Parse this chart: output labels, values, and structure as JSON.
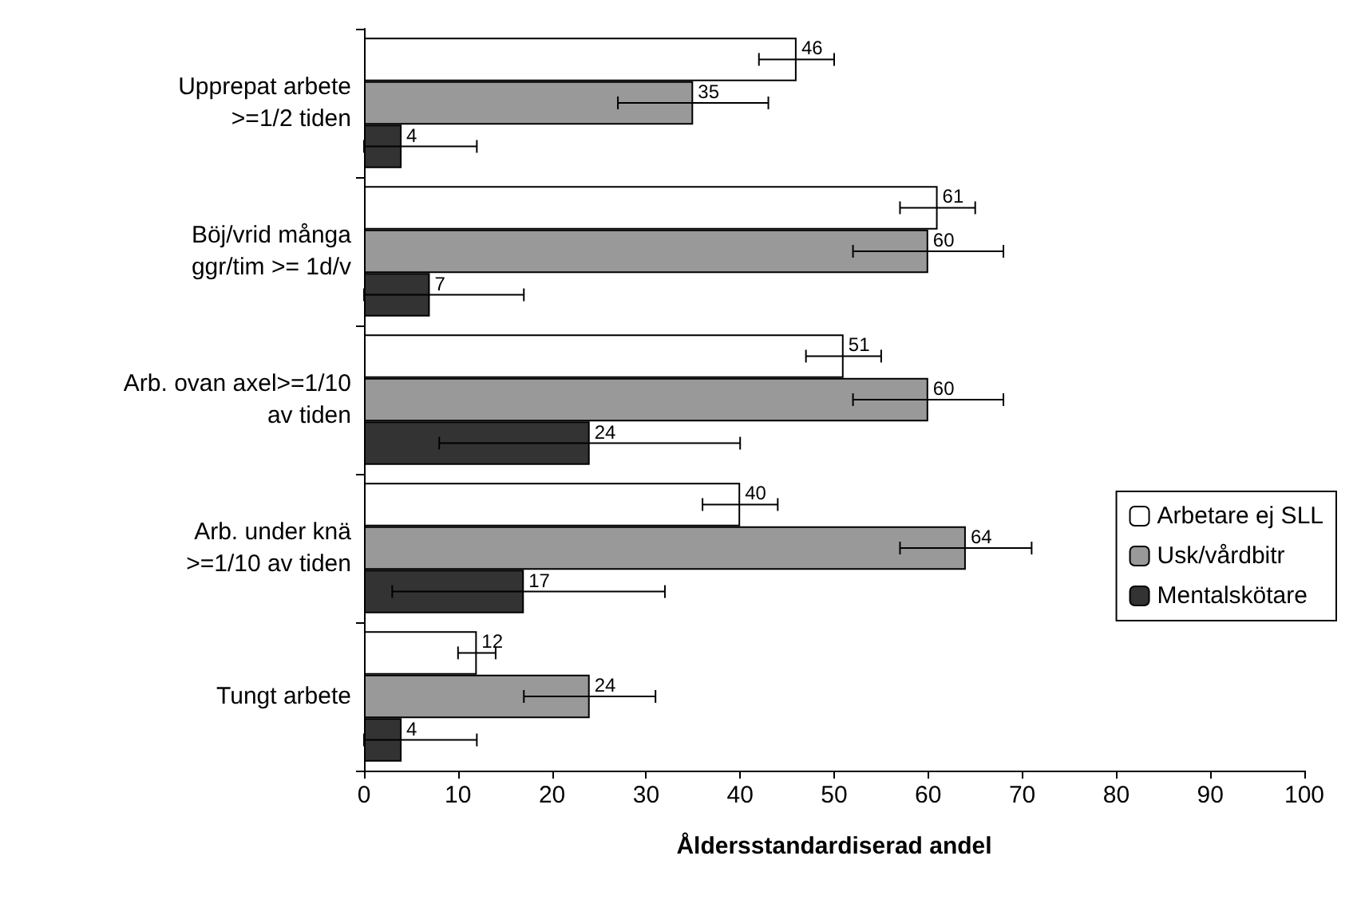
{
  "chart_data": {
    "type": "bar",
    "orientation": "horizontal",
    "xlabel": "Åldersstandardiserad andel",
    "categories": [
      "Upprepat arbete\n>=1/2 tiden",
      "Böj/vrid många\nggr/tim >= 1d/v",
      "Arb. ovan axel>=1/10\nav tiden",
      "Arb. under knä\n>=1/10 av tiden",
      "Tungt arbete"
    ],
    "series": [
      {
        "name": "Arbetare ej SLL",
        "color": "#ffffff",
        "values": [
          46,
          61,
          51,
          40,
          12
        ],
        "errors": [
          [
            42,
            50
          ],
          [
            57,
            65
          ],
          [
            47,
            55
          ],
          [
            36,
            44
          ],
          [
            10,
            14
          ]
        ]
      },
      {
        "name": "Usk/vårdbitr",
        "color": "#999999",
        "values": [
          35,
          60,
          60,
          64,
          24
        ],
        "errors": [
          [
            27,
            43
          ],
          [
            52,
            68
          ],
          [
            52,
            68
          ],
          [
            57,
            71
          ],
          [
            17,
            31
          ]
        ]
      },
      {
        "name": "Mentalskötare",
        "color": "#333333",
        "values": [
          4,
          7,
          24,
          17,
          4
        ],
        "errors": [
          [
            0,
            12
          ],
          [
            0,
            17
          ],
          [
            8,
            40
          ],
          [
            3,
            32
          ],
          [
            0,
            12
          ]
        ]
      }
    ],
    "xlim": [
      0,
      100
    ],
    "xticks": [
      0,
      10,
      20,
      30,
      40,
      50,
      60,
      70,
      80,
      90,
      100
    ],
    "data_labels": true,
    "legend": "right",
    "grid": false
  }
}
